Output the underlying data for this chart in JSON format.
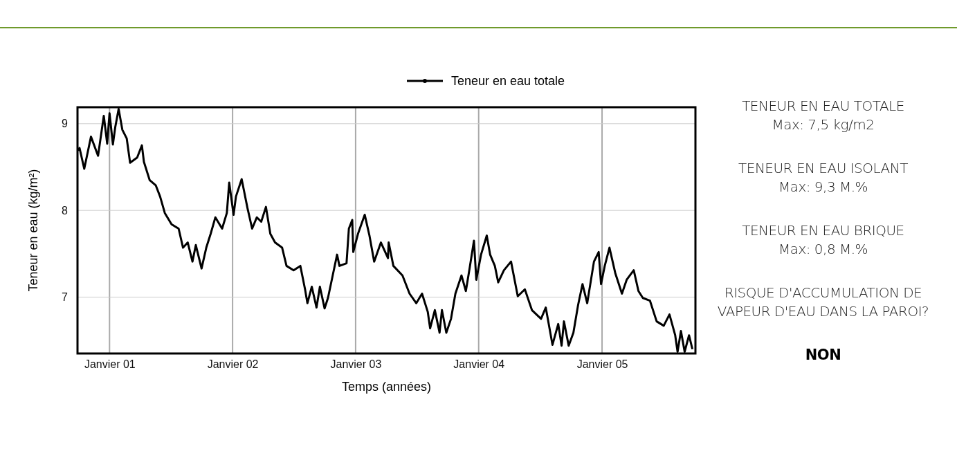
{
  "chart_data": {
    "type": "line",
    "xlabel": "Temps (années)",
    "ylabel": "Teneur en eau (kg/m²)",
    "xlim": [
      "2000-09-28",
      "2005-10-05"
    ],
    "ylim": [
      6.35,
      9.19
    ],
    "xticks": [
      {
        "value": "2001-01-01",
        "label": "Janvier 01"
      },
      {
        "value": "2002-01-01",
        "label": "Janvier 02"
      },
      {
        "value": "2003-01-01",
        "label": "Janvier 03"
      },
      {
        "value": "2004-01-01",
        "label": "Janvier 04"
      },
      {
        "value": "2005-01-01",
        "label": "Janvier 05"
      }
    ],
    "yticks": [
      7,
      8,
      9
    ],
    "grid": true,
    "legend": "top",
    "series": [
      {
        "name": "Teneur en eau totale",
        "color": "#000000",
        "x": [
          "2000-09-29",
          "2000-10-04",
          "2000-10-18",
          "2000-11-07",
          "2000-11-28",
          "2000-12-15",
          "2000-12-25",
          "2001-01-01",
          "2001-01-11",
          "2001-01-18",
          "2001-01-28",
          "2001-02-08",
          "2001-02-21",
          "2001-03-03",
          "2001-03-24",
          "2001-04-07",
          "2001-04-13",
          "2001-04-30",
          "2001-05-18",
          "2001-05-31",
          "2001-06-14",
          "2001-07-04",
          "2001-07-25",
          "2001-08-07",
          "2001-08-21",
          "2001-09-04",
          "2001-09-14",
          "2001-10-01",
          "2001-10-15",
          "2001-10-28",
          "2001-11-11",
          "2001-12-01",
          "2001-12-15",
          "2001-12-22",
          "2002-01-04",
          "2002-01-11",
          "2002-01-28",
          "2002-02-14",
          "2002-02-28",
          "2002-03-14",
          "2002-03-27",
          "2002-04-10",
          "2002-04-23",
          "2002-05-07",
          "2002-05-28",
          "2002-06-10",
          "2002-07-01",
          "2002-07-21",
          "2002-08-04",
          "2002-08-11",
          "2002-08-24",
          "2002-09-07",
          "2002-09-17",
          "2002-10-01",
          "2002-10-11",
          "2002-10-25",
          "2002-11-07",
          "2002-11-14",
          "2002-12-05",
          "2002-12-12",
          "2002-12-22",
          "2002-12-25",
          "2003-01-08",
          "2003-01-28",
          "2003-02-11",
          "2003-02-25",
          "2003-03-17",
          "2003-04-07",
          "2003-04-09",
          "2003-04-23",
          "2003-05-20",
          "2003-06-10",
          "2003-06-30",
          "2003-07-17",
          "2003-08-03",
          "2003-08-10",
          "2003-08-24",
          "2003-09-07",
          "2003-09-14",
          "2003-09-27",
          "2003-10-11",
          "2003-10-24",
          "2003-11-11",
          "2003-11-24",
          "2003-12-05",
          "2003-12-18",
          "2003-12-25",
          "2004-01-08",
          "2004-01-25",
          "2004-02-04",
          "2004-02-18",
          "2004-02-28",
          "2004-03-16",
          "2004-04-06",
          "2004-04-26",
          "2004-05-17",
          "2004-06-07",
          "2004-07-04",
          "2004-07-18",
          "2004-08-07",
          "2004-08-24",
          "2004-09-03",
          "2004-09-10",
          "2004-09-24",
          "2004-10-08",
          "2004-10-22",
          "2004-11-04",
          "2004-11-18",
          "2004-12-08",
          "2004-12-22",
          "2004-12-29",
          "2005-01-09",
          "2005-01-23",
          "2005-02-09",
          "2005-03-01",
          "2005-03-15",
          "2005-04-05",
          "2005-04-19",
          "2005-05-02",
          "2005-05-23",
          "2005-06-12",
          "2005-07-03",
          "2005-07-20",
          "2005-08-06",
          "2005-08-13",
          "2005-08-23",
          "2005-09-03",
          "2005-09-16",
          "2005-09-26"
        ],
        "values": [
          8.69,
          8.72,
          8.48,
          8.85,
          8.63,
          9.09,
          8.77,
          9.12,
          8.76,
          8.96,
          9.17,
          8.93,
          8.83,
          8.55,
          8.61,
          8.75,
          8.56,
          8.35,
          8.29,
          8.16,
          7.97,
          7.84,
          7.79,
          7.57,
          7.63,
          7.41,
          7.6,
          7.33,
          7.57,
          7.73,
          7.92,
          7.79,
          7.97,
          8.32,
          7.95,
          8.16,
          8.36,
          8.03,
          7.79,
          7.92,
          7.87,
          8.04,
          7.73,
          7.63,
          7.57,
          7.36,
          7.31,
          7.36,
          7.09,
          6.93,
          7.12,
          6.88,
          7.12,
          6.87,
          6.99,
          7.25,
          7.49,
          7.36,
          7.39,
          7.79,
          7.89,
          7.52,
          7.73,
          7.95,
          7.71,
          7.41,
          7.63,
          7.45,
          7.63,
          7.36,
          7.25,
          7.04,
          6.93,
          7.04,
          6.83,
          6.64,
          6.85,
          6.59,
          6.85,
          6.59,
          6.75,
          7.04,
          7.25,
          7.07,
          7.33,
          7.65,
          7.2,
          7.49,
          7.71,
          7.49,
          7.36,
          7.17,
          7.31,
          7.41,
          7.01,
          7.09,
          6.85,
          6.75,
          6.88,
          6.45,
          6.69,
          6.44,
          6.72,
          6.44,
          6.59,
          6.91,
          7.15,
          6.93,
          7.41,
          7.52,
          7.15,
          7.36,
          7.57,
          7.28,
          7.04,
          7.2,
          7.31,
          7.07,
          6.99,
          6.96,
          6.72,
          6.67,
          6.8,
          6.56,
          6.37,
          6.61,
          6.37,
          6.56,
          6.4
        ]
      }
    ],
    "annotations": [
      "TENEUR EN EAU TOTALE\nMax: 7,5 kg/m2",
      "TENEUR EN EAU ISOLANT\nMax: 9,3 M.%",
      "TENEUR EN EAU BRIQUE\nMax: 0,8 M.%",
      "RISQUE D'ACCUMULATION DE VAPEUR D'EAU DANS LA PAROI?",
      "NON"
    ]
  }
}
